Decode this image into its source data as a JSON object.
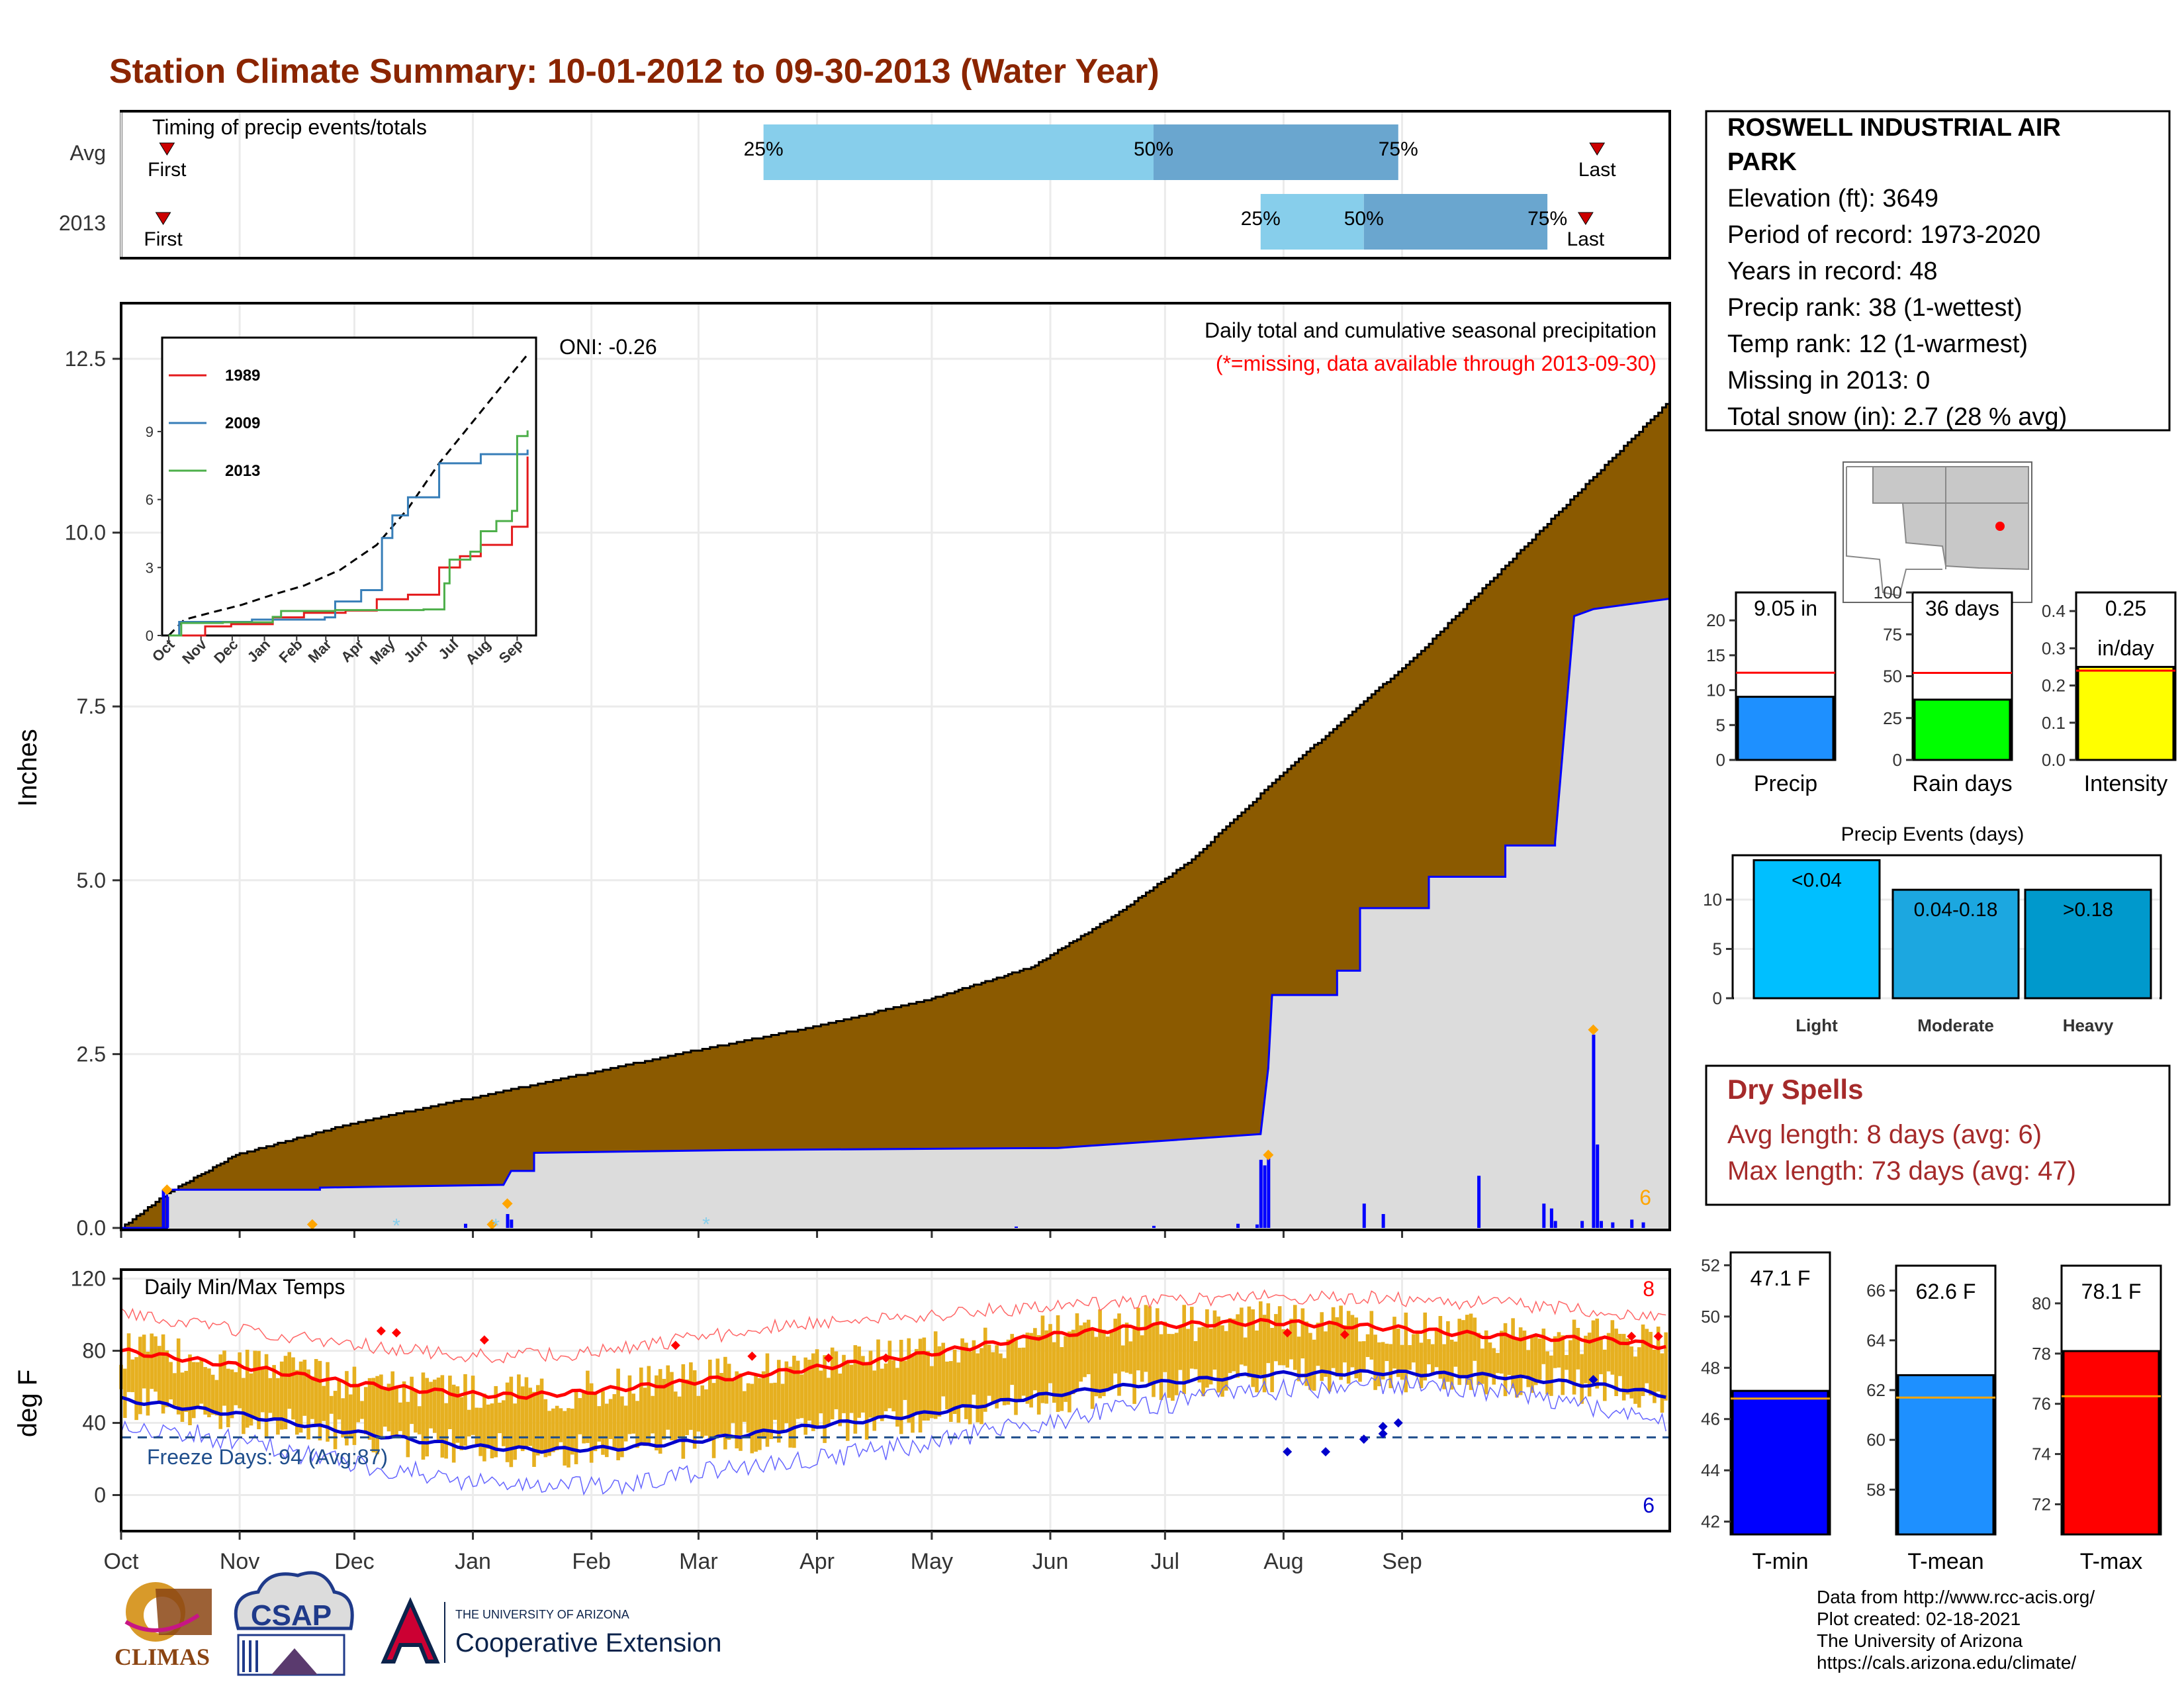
{
  "title": "Station Climate Summary: 10-01-2012 to 09-30-2013 (Water Year)",
  "timing": {
    "label": "Timing of precip events/totals",
    "rows": [
      "Avg",
      "2013"
    ],
    "first_label": "First",
    "last_label": "Last",
    "pct_labels": [
      "25%",
      "50%",
      "75%"
    ],
    "avg_quartile_days": [
      168,
      270,
      334
    ],
    "y2013_quartile_days": [
      298,
      325,
      373
    ],
    "avg_first_day": 12,
    "avg_last_day": 386,
    "y2013_first_day": 11,
    "y2013_last_day": 383
  },
  "precip": {
    "title": "Daily total and cumulative seasonal precipitation",
    "subtitle": "(*=missing, data available through 2013-09-30)",
    "oni": "ONI: -0.26",
    "ylabel": "Inches",
    "yticks": [
      "0.0",
      "2.5",
      "5.0",
      "7.5",
      "10.0",
      "12.5"
    ],
    "corner_count": "6",
    "avg_cum": [
      [
        0,
        0
      ],
      [
        12,
        0.5
      ],
      [
        30,
        1.05
      ],
      [
        60,
        1.5
      ],
      [
        90,
        1.85
      ],
      [
        120,
        2.2
      ],
      [
        150,
        2.55
      ],
      [
        182,
        2.9
      ],
      [
        212,
        3.3
      ],
      [
        238,
        3.75
      ],
      [
        260,
        4.5
      ],
      [
        280,
        5.3
      ],
      [
        303,
        6.5
      ],
      [
        340,
        8.3
      ],
      [
        385,
        10.8
      ],
      [
        405,
        11.9
      ]
    ],
    "y2013_cum": [
      [
        0,
        0
      ],
      [
        12,
        0
      ],
      [
        12,
        0.55
      ],
      [
        52,
        0.55
      ],
      [
        52,
        0.58
      ],
      [
        75,
        0.6
      ],
      [
        100,
        0.62
      ],
      [
        102,
        0.82
      ],
      [
        108,
        0.82
      ],
      [
        108,
        1.08
      ],
      [
        160,
        1.12
      ],
      [
        245,
        1.15
      ],
      [
        298,
        1.35
      ],
      [
        300,
        2.3
      ],
      [
        301,
        3.35
      ],
      [
        318,
        3.35
      ],
      [
        318,
        3.7
      ],
      [
        324,
        3.7
      ],
      [
        324,
        4.6
      ],
      [
        342,
        4.6
      ],
      [
        342,
        5.05
      ],
      [
        362,
        5.05
      ],
      [
        362,
        5.5
      ],
      [
        375,
        5.5
      ],
      [
        375,
        5.55
      ],
      [
        380,
        8.8
      ],
      [
        385,
        8.9
      ],
      [
        405,
        9.05
      ]
    ],
    "daily_bars": [
      [
        11,
        0.55
      ],
      [
        12,
        0.45
      ],
      [
        90,
        0.06
      ],
      [
        101,
        0.2
      ],
      [
        102,
        0.12
      ],
      [
        234,
        0.02
      ],
      [
        270,
        0.03
      ],
      [
        292,
        0.06
      ],
      [
        297,
        0.05
      ],
      [
        298,
        0.98
      ],
      [
        299,
        0.9
      ],
      [
        300,
        1.0
      ],
      [
        325,
        0.35
      ],
      [
        330,
        0.2
      ],
      [
        355,
        0.75
      ],
      [
        372,
        0.35
      ],
      [
        374,
        0.28
      ],
      [
        375,
        0.1
      ],
      [
        382,
        0.1
      ],
      [
        385,
        2.78
      ],
      [
        386,
        1.2
      ],
      [
        387,
        0.1
      ],
      [
        390,
        0.08
      ],
      [
        395,
        0.12
      ],
      [
        398,
        0.08
      ]
    ],
    "marker_days": [
      [
        12,
        0.55
      ],
      [
        50,
        0.05
      ],
      [
        97,
        0.05
      ],
      [
        101,
        0.35
      ],
      [
        300,
        1.05
      ],
      [
        385,
        2.85
      ]
    ],
    "missing_days": [
      [
        72,
        0.05
      ],
      [
        98,
        0.05
      ],
      [
        153,
        0.07
      ]
    ]
  },
  "inset": {
    "series": [
      {
        "name": "1989",
        "color": "#e41a1c",
        "points": [
          [
            0,
            0
          ],
          [
            25,
            0
          ],
          [
            35,
            0.4
          ],
          [
            60,
            0.5
          ],
          [
            100,
            0.8
          ],
          [
            130,
            1.0
          ],
          [
            170,
            1.1
          ],
          [
            200,
            1.6
          ],
          [
            230,
            1.8
          ],
          [
            260,
            3.0
          ],
          [
            280,
            3.5
          ],
          [
            300,
            4.0
          ],
          [
            330,
            4.8
          ],
          [
            345,
            7.9
          ]
        ]
      },
      {
        "name": "2009",
        "color": "#377eb8",
        "points": [
          [
            0,
            0
          ],
          [
            10,
            0.6
          ],
          [
            40,
            0.6
          ],
          [
            80,
            0.7
          ],
          [
            125,
            0.7
          ],
          [
            150,
            0.8
          ],
          [
            160,
            1.5
          ],
          [
            185,
            2.0
          ],
          [
            205,
            4.3
          ],
          [
            215,
            5.3
          ],
          [
            230,
            6.1
          ],
          [
            260,
            7.6
          ],
          [
            300,
            8.0
          ],
          [
            345,
            8.2
          ]
        ]
      },
      {
        "name": "2013",
        "color": "#4daf4a",
        "points": [
          [
            0,
            0
          ],
          [
            12,
            0.55
          ],
          [
            52,
            0.58
          ],
          [
            100,
            0.82
          ],
          [
            108,
            1.08
          ],
          [
            160,
            1.12
          ],
          [
            245,
            1.15
          ],
          [
            265,
            2.3
          ],
          [
            270,
            3.35
          ],
          [
            290,
            3.7
          ],
          [
            300,
            4.6
          ],
          [
            315,
            5.05
          ],
          [
            330,
            5.5
          ],
          [
            335,
            8.8
          ],
          [
            345,
            9.05
          ]
        ]
      }
    ],
    "avg_points": [
      [
        0,
        0
      ],
      [
        15,
        0.7
      ],
      [
        40,
        1.0
      ],
      [
        70,
        1.35
      ],
      [
        100,
        1.8
      ],
      [
        130,
        2.2
      ],
      [
        165,
        2.9
      ],
      [
        200,
        4.0
      ],
      [
        230,
        5.6
      ],
      [
        260,
        7.6
      ],
      [
        290,
        9.3
      ],
      [
        320,
        11.0
      ],
      [
        345,
        12.4
      ]
    ],
    "yticks": [
      "0",
      "3",
      "6",
      "9"
    ],
    "xticks": [
      "Oct",
      "Nov",
      "Dec",
      "Jan",
      "Feb",
      "Mar",
      "Apr",
      "May",
      "Jun",
      "Jul",
      "Aug",
      "Sep"
    ]
  },
  "temps": {
    "title": "Daily Min/Max Temps",
    "ylabel": "deg F",
    "yticks": [
      "0",
      "40",
      "80",
      "120"
    ],
    "freeze_label": "Freeze Days: 94 (Avg:87)",
    "top_count": "8",
    "bottom_count": "6",
    "freeze_temp": 32,
    "avg_max": [
      [
        0,
        80
      ],
      [
        30,
        72
      ],
      [
        60,
        62
      ],
      [
        90,
        56
      ],
      [
        105,
        55
      ],
      [
        120,
        57
      ],
      [
        150,
        63
      ],
      [
        180,
        70
      ],
      [
        210,
        78
      ],
      [
        240,
        88
      ],
      [
        270,
        94
      ],
      [
        300,
        96
      ],
      [
        330,
        93
      ],
      [
        360,
        88
      ],
      [
        390,
        86
      ],
      [
        405,
        82
      ]
    ],
    "avg_min": [
      [
        0,
        53
      ],
      [
        30,
        45
      ],
      [
        60,
        35
      ],
      [
        90,
        27
      ],
      [
        110,
        25
      ],
      [
        130,
        26
      ],
      [
        150,
        30
      ],
      [
        180,
        38
      ],
      [
        210,
        45
      ],
      [
        240,
        55
      ],
      [
        270,
        62
      ],
      [
        300,
        67
      ],
      [
        330,
        68
      ],
      [
        360,
        66
      ],
      [
        390,
        60
      ],
      [
        405,
        55
      ]
    ],
    "rec_max": [
      [
        0,
        100
      ],
      [
        30,
        92
      ],
      [
        60,
        84
      ],
      [
        90,
        77
      ],
      [
        120,
        78
      ],
      [
        150,
        87
      ],
      [
        180,
        96
      ],
      [
        210,
        100
      ],
      [
        240,
        104
      ],
      [
        270,
        108
      ],
      [
        300,
        110
      ],
      [
        330,
        109
      ],
      [
        360,
        106
      ],
      [
        390,
        102
      ],
      [
        405,
        98
      ]
    ],
    "rec_min": [
      [
        0,
        40
      ],
      [
        30,
        30
      ],
      [
        60,
        18
      ],
      [
        90,
        8
      ],
      [
        110,
        5
      ],
      [
        130,
        4
      ],
      [
        150,
        12
      ],
      [
        180,
        20
      ],
      [
        210,
        28
      ],
      [
        240,
        40
      ],
      [
        270,
        50
      ],
      [
        300,
        58
      ],
      [
        330,
        62
      ],
      [
        360,
        58
      ],
      [
        390,
        46
      ],
      [
        405,
        40
      ]
    ],
    "record_highs": [
      [
        68,
        91
      ],
      [
        72,
        90
      ],
      [
        95,
        86
      ],
      [
        145,
        83
      ],
      [
        165,
        77
      ],
      [
        185,
        76
      ],
      [
        200,
        76
      ],
      [
        305,
        90
      ],
      [
        395,
        88
      ],
      [
        320,
        89
      ],
      [
        402,
        88
      ]
    ],
    "record_lows": [
      [
        305,
        24
      ],
      [
        315,
        24
      ],
      [
        325,
        31
      ],
      [
        330,
        38
      ],
      [
        334,
        40
      ],
      [
        385,
        64
      ],
      [
        330,
        34
      ]
    ]
  },
  "months": [
    "Oct",
    "Nov",
    "Dec",
    "Jan",
    "Feb",
    "Mar",
    "Apr",
    "May",
    "Jun",
    "Jul",
    "Aug",
    "Sep"
  ],
  "info": {
    "station": "ROSWELL INDUSTRIAL AIR PARK",
    "lines": [
      "Elevation (ft): 3649",
      "Period of record: 1973-2020",
      "Years in record: 48",
      "Precip rank: 38 (1-wettest)",
      "Temp rank: 12 (1-warmest)",
      "Missing in 2013: 0",
      "Total snow (in): 2.7 (28 % avg)"
    ]
  },
  "summary_bars": [
    {
      "name": "Precip",
      "value": 9.05,
      "avg": 12.5,
      "label": "9.05 in",
      "max": 24,
      "ticks": [
        "0",
        "5",
        "10",
        "15",
        "20"
      ],
      "color": "#1e90ff"
    },
    {
      "name": "Rain days",
      "value": 36,
      "avg": 52,
      "label": "36 days",
      "max": 100,
      "ticks": [
        "0",
        "25",
        "50",
        "75",
        "100"
      ],
      "color": "#00ff00"
    },
    {
      "name": "Intensity",
      "value": 0.25,
      "avg": 0.24,
      "label": "0.25",
      "label2": "in/day",
      "max": 0.45,
      "ticks": [
        "0.0",
        "0.1",
        "0.2",
        "0.3",
        "0.4"
      ],
      "color": "#ffff00"
    }
  ],
  "events": {
    "title": "Precip Events (days)",
    "ticks": [
      "0",
      "5",
      "10"
    ],
    "bars": [
      {
        "name": "Light",
        "value": 14,
        "label": "<0.04",
        "color": "#00bfff"
      },
      {
        "name": "Moderate",
        "value": 11,
        "label": "0.04-0.18",
        "color": "#1ca7e0"
      },
      {
        "name": "Heavy",
        "value": 11,
        "label": ">0.18",
        "color": "#0099cc"
      }
    ]
  },
  "dry": {
    "title": "Dry Spells",
    "avg": "Avg length: 8 days (avg: 6)",
    "max": "Max length: 73 days (avg: 47)"
  },
  "temp_bars": [
    {
      "name": "T-min",
      "value": 47.1,
      "avg": 46.8,
      "label": "47.1 F",
      "min": 41.5,
      "max": 52.5,
      "ticks": [
        "42",
        "44",
        "46",
        "48",
        "50",
        "52"
      ],
      "color": "#0000ff"
    },
    {
      "name": "T-mean",
      "value": 62.6,
      "avg": 61.7,
      "label": "62.6 F",
      "min": 56.2,
      "max": 67.0,
      "ticks": [
        "58",
        "60",
        "62",
        "64",
        "66"
      ],
      "color": "#1e90ff"
    },
    {
      "name": "T-max",
      "value": 78.1,
      "avg": 76.3,
      "label": "78.1 F",
      "min": 70.8,
      "max": 81.5,
      "ticks": [
        "72",
        "74",
        "76",
        "78",
        "80"
      ],
      "color": "#ff0000"
    }
  ],
  "footer": {
    "credits": [
      "Data from http://www.rcc-acis.org/",
      "Plot created: 02-18-2021",
      "The University of Arizona",
      "https://cals.arizona.edu/climate/"
    ],
    "climas": "CLIMAS",
    "csap": "CSAP",
    "ua_small": "THE UNIVERSITY OF ARIZONA",
    "ua_big": "Cooperative Extension"
  }
}
